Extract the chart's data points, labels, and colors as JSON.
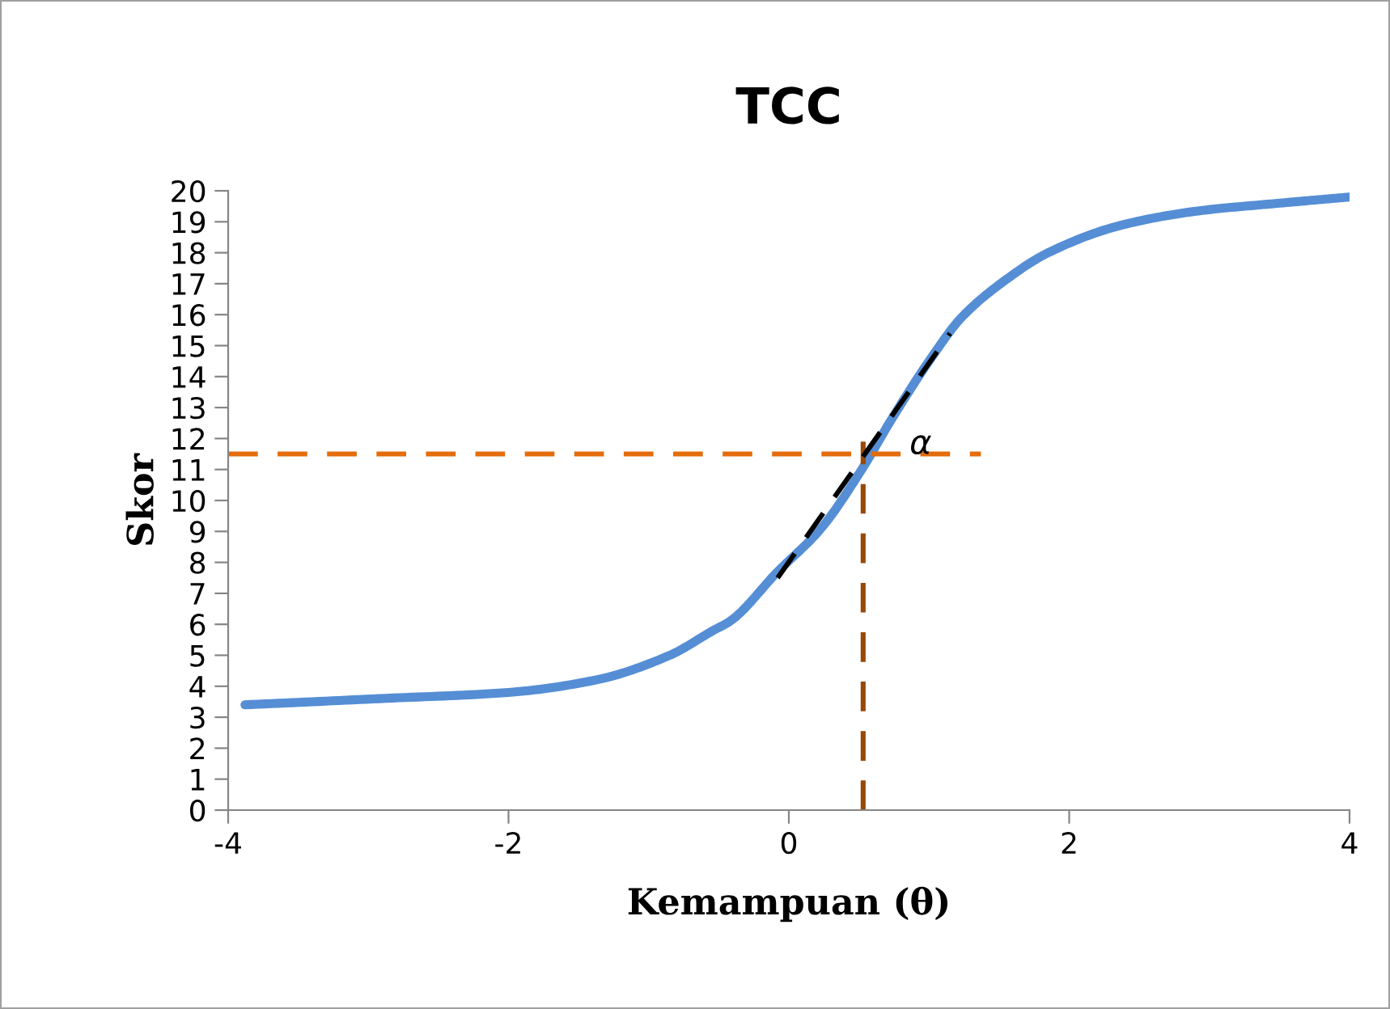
{
  "chart_data": {
    "type": "line",
    "title": "TCC",
    "xlabel": "Kemampuan (θ)",
    "ylabel": "Skor",
    "xlim": [
      -4,
      4
    ],
    "xticks": [
      -4,
      -2,
      0,
      2,
      4
    ],
    "ylim": [
      0,
      20
    ],
    "yticks": [
      0,
      1,
      2,
      3,
      4,
      5,
      6,
      7,
      8,
      9,
      10,
      11,
      12,
      13,
      14,
      15,
      16,
      17,
      18,
      19,
      20
    ],
    "grid": false,
    "marker": "none",
    "series": [
      {
        "color": "#558ed5",
        "line_style": "solid",
        "x": [
          -3.88,
          -2.92,
          -2,
          -1.38,
          -0.85,
          -0.54,
          -0.42,
          -0.08,
          0.23,
          0.52,
          0.73,
          1.0,
          1.23,
          1.54,
          1.85,
          2.38,
          2.92,
          3.5,
          4.0
        ],
        "values": [
          3.4,
          3.6,
          3.8,
          4.2,
          5.0,
          5.8,
          6.1,
          7.7,
          9.1,
          11.0,
          12.6,
          14.5,
          15.9,
          17.1,
          18.0,
          18.9,
          19.35,
          19.6,
          19.8
        ]
      },
      {
        "color": "#e46c0a",
        "line_style": "dashed",
        "x": [
          -4,
          1.37
        ],
        "values": [
          11.5,
          11.5
        ]
      },
      {
        "color": "#984807",
        "line_style": "dashed",
        "x": [
          0.53,
          0.53
        ],
        "values": [
          0,
          11.9
        ]
      },
      {
        "color": "#000000",
        "line_style": "dashed",
        "x": [
          -0.08,
          1.15
        ],
        "values": [
          7.5,
          15.4
        ]
      }
    ],
    "annotations": [
      "α"
    ]
  }
}
